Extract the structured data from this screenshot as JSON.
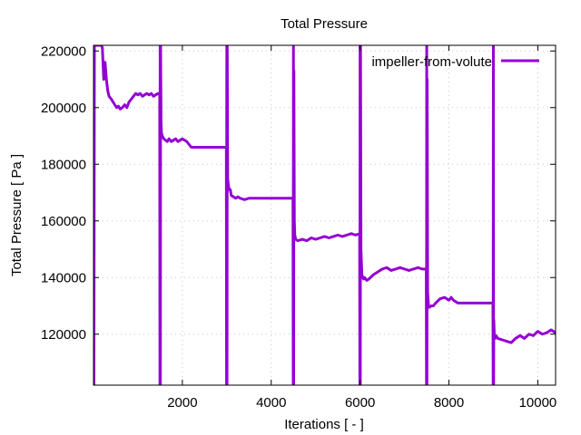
{
  "chart_data": {
    "type": "line",
    "title": "Total Pressure",
    "xlabel": "Iterations [ - ]",
    "ylabel": "Total Pressure [ Pa ]",
    "xlim": [
      0,
      10400
    ],
    "ylim": [
      102000,
      222000
    ],
    "xticks": [
      2000,
      4000,
      6000,
      8000,
      10000
    ],
    "yticks": [
      120000,
      140000,
      160000,
      180000,
      200000,
      220000
    ],
    "grid": true,
    "legend_position": "top-right",
    "series": [
      {
        "name": "impeller-from-volute",
        "color": "#9400d3",
        "x": [
          0,
          5,
          10,
          20,
          40,
          60,
          80,
          100,
          120,
          150,
          180,
          200,
          230,
          260,
          290,
          320,
          350,
          400,
          440,
          480,
          520,
          560,
          600,
          650,
          700,
          750,
          800,
          850,
          900,
          950,
          1000,
          1050,
          1100,
          1150,
          1200,
          1250,
          1300,
          1350,
          1400,
          1450,
          1490,
          1495,
          1500,
          1505,
          1510,
          1520,
          1530,
          1550,
          1580,
          1620,
          1660,
          1700,
          1750,
          1800,
          1850,
          1900,
          1950,
          2000,
          2050,
          2100,
          2150,
          2200,
          2250,
          2300,
          2400,
          2600,
          2800,
          2990,
          2995,
          3000,
          3005,
          3010,
          3020,
          3040,
          3060,
          3080,
          3100,
          3150,
          3200,
          3250,
          3300,
          3400,
          3500,
          3600,
          3700,
          3800,
          4000,
          4200,
          4490,
          4495,
          4500,
          4505,
          4510,
          4520,
          4530,
          4550,
          4600,
          4700,
          4800,
          4900,
          5000,
          5100,
          5200,
          5300,
          5400,
          5500,
          5600,
          5700,
          5800,
          5900,
          5990,
          5995,
          6000,
          6005,
          6010,
          6020,
          6040,
          6060,
          6080,
          6100,
          6150,
          6200,
          6300,
          6400,
          6500,
          6600,
          6700,
          6800,
          6900,
          7000,
          7100,
          7200,
          7300,
          7400,
          7490,
          7495,
          7500,
          7505,
          7510,
          7520,
          7540,
          7560,
          7600,
          7650,
          7700,
          7800,
          7900,
          8000,
          8050,
          8100,
          8200,
          8300,
          8400,
          8600,
          8800,
          8990,
          8995,
          9000,
          9005,
          9010,
          9020,
          9040,
          9060,
          9100,
          9200,
          9300,
          9400,
          9500,
          9600,
          9700,
          9800,
          9900,
          10000,
          10100,
          10200,
          10300,
          10400
        ],
        "y": [
          102000,
          222000,
          102000,
          222000,
          222000,
          222000,
          222000,
          222000,
          222000,
          222000,
          222000,
          221000,
          210000,
          216000,
          210000,
          206000,
          204000,
          203000,
          202000,
          201000,
          200000,
          200500,
          199500,
          200000,
          201000,
          200000,
          202000,
          203000,
          204000,
          205000,
          204500,
          205000,
          204000,
          204500,
          205000,
          204500,
          205000,
          204000,
          204500,
          205000,
          204500,
          102000,
          222000,
          102000,
          222000,
          195000,
          191000,
          190000,
          189000,
          188500,
          188000,
          189000,
          188000,
          188500,
          189000,
          188000,
          188500,
          189000,
          188500,
          188000,
          187000,
          186000,
          186000,
          186000,
          186000,
          186000,
          186000,
          186000,
          102000,
          222000,
          102000,
          222000,
          175000,
          172000,
          171000,
          171000,
          169000,
          168500,
          168000,
          168500,
          168000,
          167500,
          168000,
          168000,
          168000,
          168000,
          168000,
          168000,
          168000,
          102000,
          222000,
          102000,
          213000,
          160000,
          155000,
          153500,
          153000,
          153500,
          153000,
          154000,
          153500,
          154000,
          154500,
          154000,
          154500,
          155000,
          154500,
          155000,
          155500,
          155000,
          155500,
          102000,
          222000,
          102000,
          222000,
          150000,
          141000,
          140000,
          139500,
          140000,
          139000,
          139500,
          141000,
          142000,
          143000,
          143500,
          142500,
          143000,
          143500,
          143000,
          142500,
          143000,
          143500,
          143000,
          143000,
          102000,
          222000,
          102000,
          210000,
          135000,
          130000,
          129500,
          130000,
          130000,
          131000,
          132500,
          133000,
          132000,
          133000,
          132000,
          131000,
          131000,
          131000,
          131000,
          131000,
          131000,
          102000,
          222000,
          102000,
          125000,
          120000,
          118500,
          119500,
          118500,
          118000,
          117500,
          117000,
          118500,
          119500,
          118500,
          120000,
          119500,
          121000,
          120000,
          120500,
          121500,
          120500
        ]
      }
    ]
  }
}
